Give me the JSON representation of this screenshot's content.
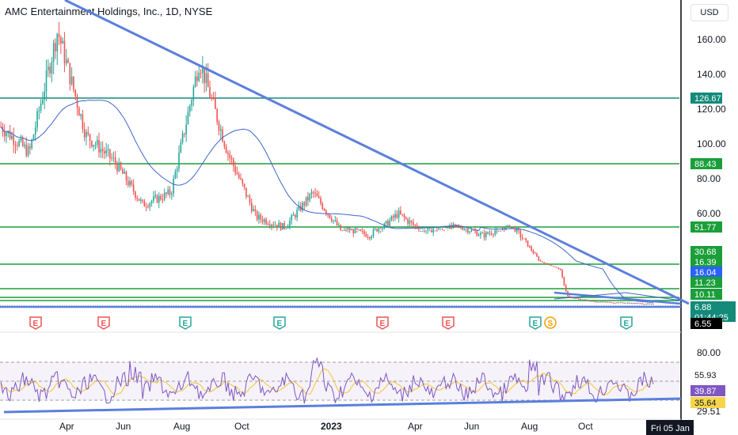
{
  "header": {
    "title": "AMC Entertainment Holdings, Inc., 1D, NYSE",
    "currency": "USD"
  },
  "colors": {
    "up": "#26a69a",
    "down": "#ef5350",
    "trendline": "#5b7fdc",
    "support": "#1a9f3a",
    "resistance_teal": "#138a7a",
    "ma": "#3f66c9",
    "rsi": "#7e57c2",
    "rsi_ma": "#f5c531",
    "axis_line": "#000000"
  },
  "price_axis": {
    "ticks": [
      "160.00",
      "140.00",
      "120.00",
      "100.00",
      "80.00",
      "60.00"
    ],
    "tick_values": [
      160,
      140,
      120,
      100,
      80,
      60
    ]
  },
  "price_labels": [
    {
      "text": "126.67",
      "bg": "#138a7a"
    },
    {
      "text": "88.43",
      "bg": "#1a9f3a"
    },
    {
      "text": "51.77",
      "bg": "#1a9f3a"
    },
    {
      "text": "30.68",
      "bg": "#1a9f3a"
    },
    {
      "text": "16.39",
      "bg": "#1a9f3a"
    },
    {
      "text": "16.04",
      "bg": "#2962ff"
    },
    {
      "text": "11.23",
      "bg": "#1a9f3a"
    },
    {
      "text": "10.11",
      "bg": "#1a9f3a"
    },
    {
      "text": "6.88",
      "bg": "#138a7a",
      "sub": "01:44:25"
    },
    {
      "text": "6.55",
      "bg": "#000000"
    }
  ],
  "time_axis": {
    "labels": [
      "Apr",
      "Jun",
      "Aug",
      "Oct",
      "2023",
      "Apr",
      "Jun",
      "Aug",
      "Oct"
    ],
    "current": "Fri 05 Jan"
  },
  "events": [
    {
      "label": "E",
      "type": "earnings-red"
    },
    {
      "label": "E",
      "type": "earnings-red"
    },
    {
      "label": "E",
      "type": "earnings-green"
    },
    {
      "label": "E",
      "type": "earnings-green"
    },
    {
      "label": "E",
      "type": "earnings-red"
    },
    {
      "label": "E",
      "type": "earnings-red"
    },
    {
      "label": "E",
      "type": "earnings-green"
    },
    {
      "label": "S",
      "type": "split"
    },
    {
      "label": "E",
      "type": "earnings-green"
    }
  ],
  "rsi_axis": {
    "ticks": [
      "80.00",
      "29.51"
    ],
    "labels": [
      {
        "text": "55.93",
        "bg": "#ffffff",
        "color": "#131722"
      },
      {
        "text": "39.87",
        "bg": "#7e57c2",
        "color": "#ffffff"
      },
      {
        "text": "35.64",
        "bg": "#f5d64a",
        "color": "#131722"
      }
    ]
  },
  "chart_data": {
    "type": "line",
    "title": "AMC Entertainment Holdings, Inc., 1D, NYSE",
    "ylabel": "USD",
    "approx_closes": [
      {
        "x": "2022-02",
        "y": 110
      },
      {
        "x": "2022-03",
        "y": 95
      },
      {
        "x": "2022-03-29",
        "y": 165
      },
      {
        "x": "2022-04-15",
        "y": 105
      },
      {
        "x": "2022-05",
        "y": 90
      },
      {
        "x": "2022-06",
        "y": 65
      },
      {
        "x": "2022-07",
        "y": 72
      },
      {
        "x": "2022-08-08",
        "y": 148
      },
      {
        "x": "2022-09",
        "y": 95
      },
      {
        "x": "2022-10",
        "y": 58
      },
      {
        "x": "2022-11",
        "y": 52
      },
      {
        "x": "2022-12",
        "y": 72
      },
      {
        "x": "2023-01",
        "y": 50
      },
      {
        "x": "2023-02",
        "y": 45
      },
      {
        "x": "2023-03",
        "y": 60
      },
      {
        "x": "2023-04",
        "y": 48
      },
      {
        "x": "2023-05",
        "y": 52
      },
      {
        "x": "2023-06",
        "y": 45
      },
      {
        "x": "2023-07",
        "y": 52
      },
      {
        "x": "2023-08",
        "y": 30
      },
      {
        "x": "2023-09",
        "y": 10
      },
      {
        "x": "2023-10",
        "y": 8
      },
      {
        "x": "2023-11",
        "y": 7.5
      },
      {
        "x": "2024-01-05",
        "y": 6.88
      }
    ],
    "horizontal_levels": [
      126.67,
      88.43,
      51.77,
      30.68,
      16.39,
      11.23,
      10.11
    ],
    "rsi_levels": {
      "upper": 70,
      "lower": 30,
      "current": 39.87,
      "ma": 35.64
    }
  }
}
